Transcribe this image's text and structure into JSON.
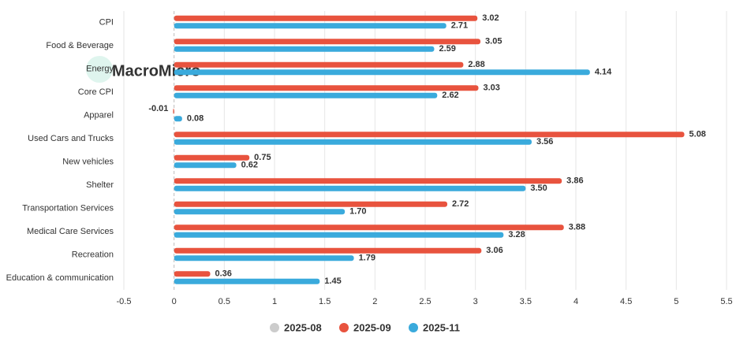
{
  "chart_data": {
    "type": "hbar",
    "watermark": "MacroMicro",
    "categories": [
      "CPI",
      "Food & Beverage",
      "Energy",
      "Core CPI",
      "Apparel",
      "Used Cars and Trucks",
      "New vehicles",
      "Shelter",
      "Transportation Services",
      "Medical Care Services",
      "Recreation",
      "Education & communication"
    ],
    "series": [
      {
        "name": "2025-08",
        "color": "#cccccc",
        "visible": false,
        "values": [
          null,
          null,
          null,
          null,
          null,
          null,
          null,
          null,
          null,
          null,
          null,
          null
        ]
      },
      {
        "name": "2025-09",
        "color": "#e8533e",
        "visible": true,
        "values": [
          3.02,
          3.05,
          2.88,
          3.03,
          -0.01,
          5.08,
          0.75,
          3.86,
          2.72,
          3.88,
          3.06,
          0.36
        ],
        "value_labels": [
          "3.02",
          "3.05",
          "2.88",
          "3.03",
          "-0.01",
          "5.08",
          "0.75",
          "3.86",
          "2.72",
          "3.88",
          "3.06",
          "0.36"
        ]
      },
      {
        "name": "2025-11",
        "color": "#3aaadc",
        "visible": true,
        "values": [
          2.71,
          2.59,
          4.14,
          2.62,
          0.08,
          3.56,
          0.62,
          3.5,
          1.7,
          3.28,
          1.79,
          1.45
        ],
        "value_labels": [
          "2.71",
          "2.59",
          "4.14",
          "2.62",
          "0.08",
          "3.56",
          "0.62",
          "3.50",
          "1.70",
          "3.28",
          "1.79",
          "1.45"
        ]
      }
    ],
    "xlim": [
      -0.5,
      5.5
    ],
    "xticks": [
      -0.5,
      0,
      0.5,
      1,
      1.5,
      2,
      2.5,
      3,
      3.5,
      4,
      4.5,
      5,
      5.5
    ],
    "grid": true
  }
}
